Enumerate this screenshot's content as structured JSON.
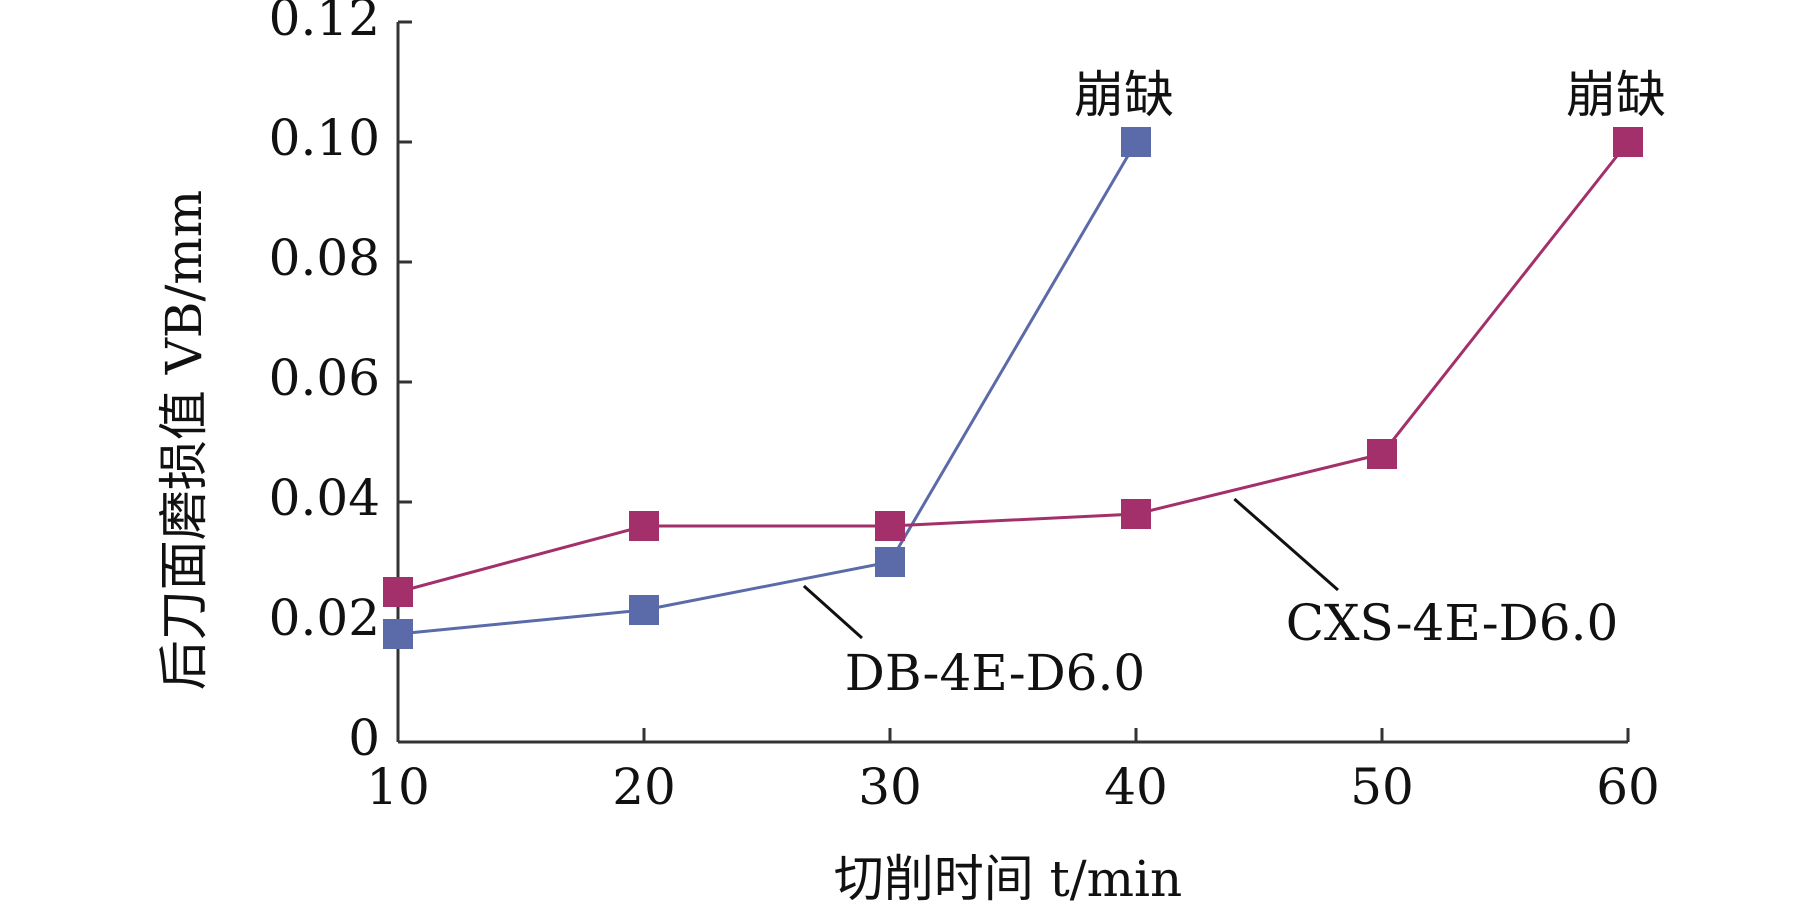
{
  "chart_data": {
    "type": "line",
    "xlabel": "切削时间 t/min",
    "ylabel": "后刀面磨损值 VB/mm",
    "x": [
      10,
      20,
      30,
      40,
      50,
      60
    ],
    "xlim": [
      10,
      60
    ],
    "ylim": [
      0,
      0.12
    ],
    "x_ticks": [
      "10",
      "20",
      "30",
      "40",
      "50",
      "60"
    ],
    "y_ticks": [
      "0",
      "0.02",
      "0.04",
      "0.06",
      "0.08",
      "0.10",
      "0.12"
    ],
    "grid": false,
    "legend": "none",
    "series": [
      {
        "name": "DB-4E-D6.0",
        "x": [
          10,
          20,
          30,
          40
        ],
        "values": [
          0.018,
          0.022,
          0.03,
          0.1
        ],
        "color": "#5b6aa8"
      },
      {
        "name": "CXS-4E-D6.0",
        "x": [
          10,
          20,
          30,
          40,
          50,
          60
        ],
        "values": [
          0.025,
          0.036,
          0.036,
          0.038,
          0.048,
          0.1
        ],
        "color": "#a3306a"
      }
    ],
    "annotations": [
      {
        "text": "崩缺",
        "x": 40,
        "y": 0.1
      },
      {
        "text": "崩缺",
        "x": 60,
        "y": 0.1
      }
    ]
  }
}
